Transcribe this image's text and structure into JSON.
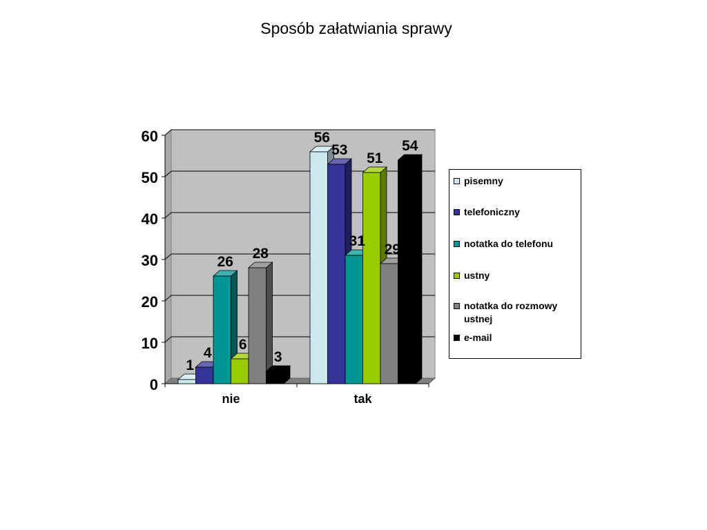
{
  "chart_data": {
    "type": "bar",
    "title": "Sposób załatwiania sprawy",
    "categories": [
      "nie",
      "tak"
    ],
    "series": [
      {
        "name": "pisemny",
        "values": [
          1,
          56
        ],
        "color": "#cce9f0"
      },
      {
        "name": "telefoniczny",
        "values": [
          4,
          53
        ],
        "color": "#33339a"
      },
      {
        "name": "notatka do telefonu",
        "values": [
          26,
          31
        ],
        "color": "#009595"
      },
      {
        "name": "ustny",
        "values": [
          6,
          51
        ],
        "color": "#99cc00"
      },
      {
        "name": "notatka do rozmowy ustnej",
        "values": [
          28,
          29
        ],
        "color": "#808080"
      },
      {
        "name": "e-mail",
        "values": [
          3,
          54
        ],
        "color": "#000000"
      }
    ],
    "ylim": [
      0,
      60
    ],
    "yticks": [
      0,
      10,
      20,
      30,
      40,
      50,
      60
    ],
    "data_labels": true,
    "grid": true,
    "legend_position": "right",
    "plot_background": "#c0c0c0"
  }
}
